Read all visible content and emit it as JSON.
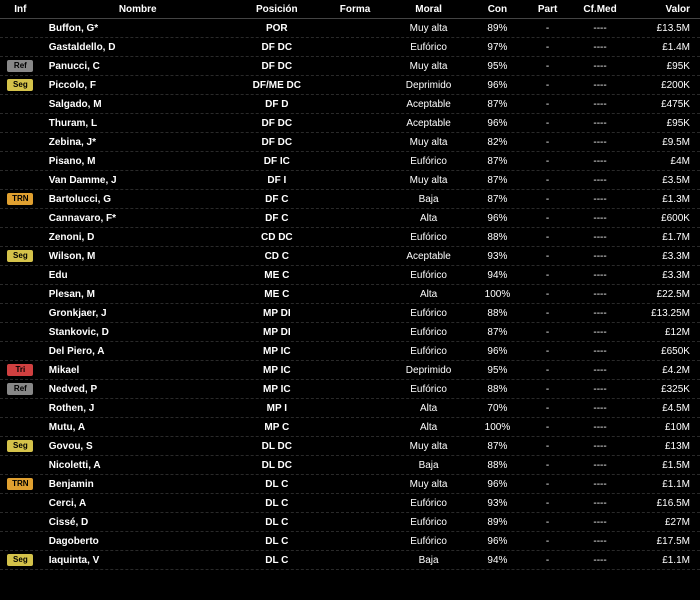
{
  "headers": {
    "inf": "Inf",
    "name": "Nombre",
    "pos": "Posición",
    "form": "Forma",
    "moral": "Moral",
    "con": "Con",
    "part": "Part",
    "cfmed": "Cf.Med",
    "valor": "Valor"
  },
  "players": [
    {
      "inf": "",
      "name": "Buffon, G*",
      "pos": "POR",
      "form": "",
      "moral": "Muy alta",
      "con": "89%",
      "part": "-",
      "cfmed": "----",
      "valor": "£13.5M"
    },
    {
      "inf": "",
      "name": "Gastaldello, D",
      "pos": "DF DC",
      "form": "",
      "moral": "Eufórico",
      "con": "97%",
      "part": "-",
      "cfmed": "----",
      "valor": "£1.4M"
    },
    {
      "inf": "Ref",
      "name": "Panucci, C",
      "pos": "DF DC",
      "form": "",
      "moral": "Muy alta",
      "con": "95%",
      "part": "-",
      "cfmed": "----",
      "valor": "£95K"
    },
    {
      "inf": "Seg",
      "name": "Piccolo, F",
      "pos": "DF/ME DC",
      "form": "",
      "moral": "Deprimido",
      "con": "96%",
      "part": "-",
      "cfmed": "----",
      "valor": "£200K"
    },
    {
      "inf": "",
      "name": "Salgado, M",
      "pos": "DF D",
      "form": "",
      "moral": "Aceptable",
      "con": "87%",
      "part": "-",
      "cfmed": "----",
      "valor": "£475K"
    },
    {
      "inf": "",
      "name": "Thuram, L",
      "pos": "DF DC",
      "form": "",
      "moral": "Aceptable",
      "con": "96%",
      "part": "-",
      "cfmed": "----",
      "valor": "£95K"
    },
    {
      "inf": "",
      "name": "Zebina, J*",
      "pos": "DF DC",
      "form": "",
      "moral": "Muy alta",
      "con": "82%",
      "part": "-",
      "cfmed": "----",
      "valor": "£9.5M"
    },
    {
      "inf": "",
      "name": "Pisano, M",
      "pos": "DF IC",
      "form": "",
      "moral": "Eufórico",
      "con": "87%",
      "part": "-",
      "cfmed": "----",
      "valor": "£4M"
    },
    {
      "inf": "",
      "name": "Van Damme, J",
      "pos": "DF I",
      "form": "",
      "moral": "Muy alta",
      "con": "87%",
      "part": "-",
      "cfmed": "----",
      "valor": "£3.5M"
    },
    {
      "inf": "TRN",
      "name": "Bartolucci, G",
      "pos": "DF C",
      "form": "",
      "moral": "Baja",
      "con": "87%",
      "part": "-",
      "cfmed": "----",
      "valor": "£1.3M"
    },
    {
      "inf": "",
      "name": "Cannavaro, F*",
      "pos": "DF C",
      "form": "",
      "moral": "Alta",
      "con": "96%",
      "part": "-",
      "cfmed": "----",
      "valor": "£600K"
    },
    {
      "inf": "",
      "name": "Zenoni, D",
      "pos": "CD DC",
      "form": "",
      "moral": "Eufórico",
      "con": "88%",
      "part": "-",
      "cfmed": "----",
      "valor": "£1.7M"
    },
    {
      "inf": "Seg",
      "name": "Wilson, M",
      "pos": "CD C",
      "form": "",
      "moral": "Aceptable",
      "con": "93%",
      "part": "-",
      "cfmed": "----",
      "valor": "£3.3M"
    },
    {
      "inf": "",
      "name": "Edu",
      "pos": "ME C",
      "form": "",
      "moral": "Eufórico",
      "con": "94%",
      "part": "-",
      "cfmed": "----",
      "valor": "£3.3M"
    },
    {
      "inf": "",
      "name": "Plesan, M",
      "pos": "ME C",
      "form": "",
      "moral": "Alta",
      "con": "100%",
      "part": "-",
      "cfmed": "----",
      "valor": "£22.5M"
    },
    {
      "inf": "",
      "name": "Gronkjaer, J",
      "pos": "MP DI",
      "form": "",
      "moral": "Eufórico",
      "con": "88%",
      "part": "-",
      "cfmed": "----",
      "valor": "£13.25M"
    },
    {
      "inf": "",
      "name": "Stankovic, D",
      "pos": "MP DI",
      "form": "",
      "moral": "Eufórico",
      "con": "87%",
      "part": "-",
      "cfmed": "----",
      "valor": "£12M"
    },
    {
      "inf": "",
      "name": "Del Piero, A",
      "pos": "MP IC",
      "form": "",
      "moral": "Eufórico",
      "con": "96%",
      "part": "-",
      "cfmed": "----",
      "valor": "£650K"
    },
    {
      "inf": "Tri",
      "name": "Mikael",
      "pos": "MP IC",
      "form": "",
      "moral": "Deprimido",
      "con": "95%",
      "part": "-",
      "cfmed": "----",
      "valor": "£4.2M"
    },
    {
      "inf": "Ref",
      "name": "Nedved, P",
      "pos": "MP IC",
      "form": "",
      "moral": "Eufórico",
      "con": "88%",
      "part": "-",
      "cfmed": "----",
      "valor": "£325K"
    },
    {
      "inf": "",
      "name": "Rothen, J",
      "pos": "MP I",
      "form": "",
      "moral": "Alta",
      "con": "70%",
      "part": "-",
      "cfmed": "----",
      "valor": "£4.5M"
    },
    {
      "inf": "",
      "name": "Mutu, A",
      "pos": "MP C",
      "form": "",
      "moral": "Alta",
      "con": "100%",
      "part": "-",
      "cfmed": "----",
      "valor": "£10M"
    },
    {
      "inf": "Seg",
      "name": "Govou, S",
      "pos": "DL DC",
      "form": "",
      "moral": "Muy alta",
      "con": "87%",
      "part": "-",
      "cfmed": "----",
      "valor": "£13M"
    },
    {
      "inf": "",
      "name": "Nicoletti, A",
      "pos": "DL DC",
      "form": "",
      "moral": "Baja",
      "con": "88%",
      "part": "-",
      "cfmed": "----",
      "valor": "£1.5M"
    },
    {
      "inf": "TRN",
      "name": "Benjamin",
      "pos": "DL C",
      "form": "",
      "moral": "Muy alta",
      "con": "96%",
      "part": "-",
      "cfmed": "----",
      "valor": "£1.1M"
    },
    {
      "inf": "",
      "name": "Cerci, A",
      "pos": "DL C",
      "form": "",
      "moral": "Eufórico",
      "con": "93%",
      "part": "-",
      "cfmed": "----",
      "valor": "£16.5M"
    },
    {
      "inf": "",
      "name": "Cissé, D",
      "pos": "DL C",
      "form": "",
      "moral": "Eufórico",
      "con": "89%",
      "part": "-",
      "cfmed": "----",
      "valor": "£27M"
    },
    {
      "inf": "",
      "name": "Dagoberto",
      "pos": "DL C",
      "form": "",
      "moral": "Eufórico",
      "con": "96%",
      "part": "-",
      "cfmed": "----",
      "valor": "£17.5M"
    },
    {
      "inf": "Seg",
      "name": "Iaquinta, V",
      "pos": "DL C",
      "form": "",
      "moral": "Baja",
      "con": "94%",
      "part": "-",
      "cfmed": "----",
      "valor": "£1.1M"
    }
  ]
}
